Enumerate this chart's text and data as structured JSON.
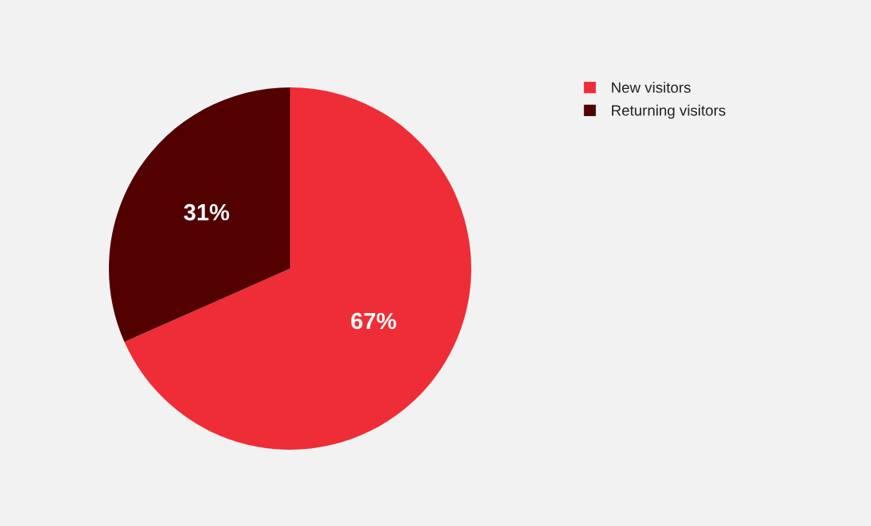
{
  "chart_data": {
    "type": "pie",
    "categories": [
      "New visitors",
      "Returning visitors"
    ],
    "values": [
      67,
      31
    ],
    "colors": [
      "#ee2d36",
      "#520000"
    ],
    "value_labels": [
      "67%",
      "31%"
    ],
    "legend": "top right"
  }
}
